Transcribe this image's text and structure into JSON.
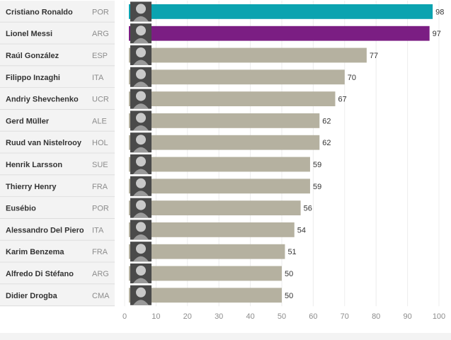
{
  "chart_data": {
    "type": "bar",
    "orientation": "horizontal",
    "categories": [
      "Cristiano Ronaldo",
      "Lionel Messi",
      "Raúl González",
      "Filippo Inzaghi",
      "Andriy Shevchenko",
      "Gerd Müller",
      "Ruud van Nistelrooy",
      "Henrik Larsson",
      "Thierry Henry",
      "Eusébio",
      "Alessandro Del Piero",
      "Karim Benzema",
      "Alfredo Di Stéfano",
      "Didier Drogba"
    ],
    "countries": [
      "POR",
      "ARG",
      "ESP",
      "ITA",
      "UCR",
      "ALE",
      "HOL",
      "SUE",
      "FRA",
      "POR",
      "ITA",
      "FRA",
      "ARG",
      "CMA"
    ],
    "values": [
      98,
      97,
      77,
      70,
      67,
      62,
      62,
      59,
      59,
      56,
      54,
      51,
      50,
      50
    ],
    "bar_colors": [
      "#0ba3b0",
      "#7b1e83",
      "#b5b1a0",
      "#b5b1a0",
      "#b5b1a0",
      "#b5b1a0",
      "#b5b1a0",
      "#b5b1a0",
      "#b5b1a0",
      "#b5b1a0",
      "#b5b1a0",
      "#b5b1a0",
      "#b5b1a0",
      "#b5b1a0"
    ],
    "xticks": [
      0,
      10,
      20,
      30,
      40,
      50,
      60,
      70,
      80,
      90,
      100
    ],
    "xlim": [
      0,
      100
    ],
    "photo_icon": "player-portrait-icon",
    "grid": true,
    "title": "",
    "xlabel": "",
    "ylabel": ""
  }
}
